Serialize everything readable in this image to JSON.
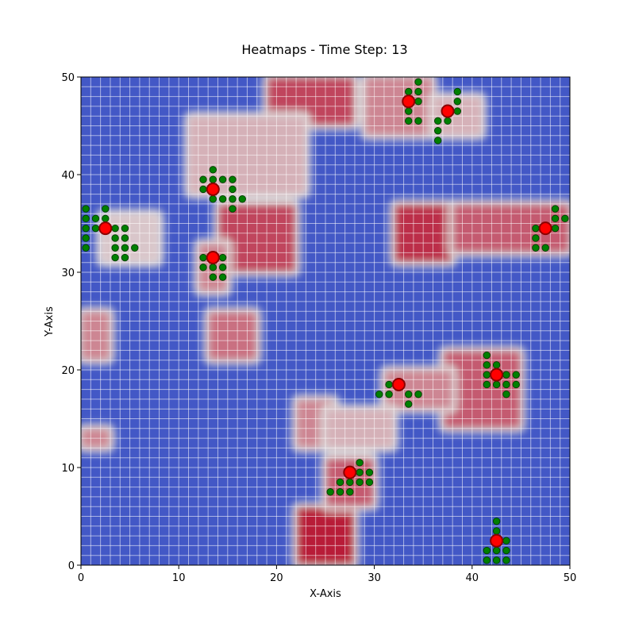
{
  "chart_data": {
    "type": "heatmap",
    "title": "Heatmaps - Time Step: 13",
    "xlabel": "X-Axis",
    "ylabel": "Y-Axis",
    "xlim": [
      0,
      50
    ],
    "ylim": [
      0,
      50
    ],
    "x_ticks": [
      "0",
      "10",
      "20",
      "30",
      "40",
      "50"
    ],
    "y_ticks": [
      "0",
      "10",
      "20",
      "30",
      "40",
      "50"
    ],
    "grid": true,
    "colormap": {
      "low": "#3b4cc0",
      "mid": "#dddcdc",
      "high": "#b40426"
    },
    "grid_color": "#ffffff",
    "hot_regions": [
      {
        "x": [
          19,
          28
        ],
        "y": [
          45,
          50
        ],
        "value": 0.85
      },
      {
        "x": [
          11,
          23
        ],
        "y": [
          38,
          46
        ],
        "value": 0.6
      },
      {
        "x": [
          14,
          22
        ],
        "y": [
          30,
          37
        ],
        "value": 0.85
      },
      {
        "x": [
          22,
          28
        ],
        "y": [
          0,
          6
        ],
        "value": 0.95
      },
      {
        "x": [
          22,
          26
        ],
        "y": [
          12,
          17
        ],
        "value": 0.7
      },
      {
        "x": [
          32,
          38
        ],
        "y": [
          31,
          37
        ],
        "value": 0.9
      },
      {
        "x": [
          38,
          50
        ],
        "y": [
          32,
          37
        ],
        "value": 0.8
      },
      {
        "x": [
          37,
          45
        ],
        "y": [
          14,
          22
        ],
        "value": 0.8
      },
      {
        "x": [
          25,
          30
        ],
        "y": [
          6,
          11
        ],
        "value": 0.8
      },
      {
        "x": [
          0,
          3
        ],
        "y": [
          21,
          26
        ],
        "value": 0.7
      },
      {
        "x": [
          0,
          3
        ],
        "y": [
          12,
          14
        ],
        "value": 0.7
      },
      {
        "x": [
          13,
          18
        ],
        "y": [
          21,
          26
        ],
        "value": 0.75
      },
      {
        "x": [
          31,
          38
        ],
        "y": [
          16,
          20
        ],
        "value": 0.7
      },
      {
        "x": [
          29,
          36
        ],
        "y": [
          44,
          50
        ],
        "value": 0.7
      },
      {
        "x": [
          36,
          41
        ],
        "y": [
          44,
          48
        ],
        "value": 0.6
      },
      {
        "x": [
          2,
          8
        ],
        "y": [
          31,
          36
        ],
        "value": 0.55
      },
      {
        "x": [
          12,
          15
        ],
        "y": [
          28,
          33
        ],
        "value": 0.7
      },
      {
        "x": [
          25,
          32
        ],
        "y": [
          12,
          16
        ],
        "value": 0.6
      }
    ],
    "agents": [
      {
        "x": 2.5,
        "y": 34.5
      },
      {
        "x": 13.5,
        "y": 38.5
      },
      {
        "x": 13.5,
        "y": 31.5
      },
      {
        "x": 33.5,
        "y": 47.5
      },
      {
        "x": 37.5,
        "y": 46.5
      },
      {
        "x": 47.5,
        "y": 34.5
      },
      {
        "x": 42.5,
        "y": 19.5
      },
      {
        "x": 32.5,
        "y": 18.5
      },
      {
        "x": 27.5,
        "y": 9.5
      },
      {
        "x": 42.5,
        "y": 2.5
      }
    ],
    "trail_points": [
      [
        0.5,
        36.5
      ],
      [
        2.5,
        36.5
      ],
      [
        0.5,
        35.5
      ],
      [
        1.5,
        35.5
      ],
      [
        2.5,
        35.5
      ],
      [
        0.5,
        34.5
      ],
      [
        1.5,
        34.5
      ],
      [
        3.5,
        34.5
      ],
      [
        4.5,
        34.5
      ],
      [
        0.5,
        33.5
      ],
      [
        3.5,
        33.5
      ],
      [
        4.5,
        33.5
      ],
      [
        0.5,
        32.5
      ],
      [
        3.5,
        32.5
      ],
      [
        4.5,
        32.5
      ],
      [
        5.5,
        32.5
      ],
      [
        3.5,
        31.5
      ],
      [
        4.5,
        31.5
      ],
      [
        13.5,
        40.5
      ],
      [
        12.5,
        39.5
      ],
      [
        13.5,
        39.5
      ],
      [
        14.5,
        39.5
      ],
      [
        15.5,
        39.5
      ],
      [
        12.5,
        38.5
      ],
      [
        15.5,
        38.5
      ],
      [
        13.5,
        37.5
      ],
      [
        14.5,
        37.5
      ],
      [
        15.5,
        37.5
      ],
      [
        16.5,
        37.5
      ],
      [
        15.5,
        36.5
      ],
      [
        12.5,
        31.5
      ],
      [
        14.5,
        31.5
      ],
      [
        12.5,
        30.5
      ],
      [
        13.5,
        30.5
      ],
      [
        14.5,
        30.5
      ],
      [
        13.5,
        29.5
      ],
      [
        14.5,
        29.5
      ],
      [
        34.5,
        49.5
      ],
      [
        33.5,
        48.5
      ],
      [
        34.5,
        48.5
      ],
      [
        34.5,
        47.5
      ],
      [
        33.5,
        46.5
      ],
      [
        33.5,
        45.5
      ],
      [
        34.5,
        45.5
      ],
      [
        38.5,
        48.5
      ],
      [
        38.5,
        47.5
      ],
      [
        38.5,
        46.5
      ],
      [
        36.5,
        45.5
      ],
      [
        37.5,
        45.5
      ],
      [
        36.5,
        44.5
      ],
      [
        36.5,
        43.5
      ],
      [
        48.5,
        36.5
      ],
      [
        48.5,
        35.5
      ],
      [
        49.5,
        35.5
      ],
      [
        46.5,
        34.5
      ],
      [
        48.5,
        34.5
      ],
      [
        46.5,
        33.5
      ],
      [
        46.5,
        32.5
      ],
      [
        47.5,
        32.5
      ],
      [
        41.5,
        21.5
      ],
      [
        41.5,
        20.5
      ],
      [
        42.5,
        20.5
      ],
      [
        41.5,
        19.5
      ],
      [
        43.5,
        19.5
      ],
      [
        44.5,
        19.5
      ],
      [
        41.5,
        18.5
      ],
      [
        42.5,
        18.5
      ],
      [
        43.5,
        18.5
      ],
      [
        44.5,
        18.5
      ],
      [
        43.5,
        17.5
      ],
      [
        31.5,
        18.5
      ],
      [
        30.5,
        17.5
      ],
      [
        31.5,
        17.5
      ],
      [
        33.5,
        17.5
      ],
      [
        34.5,
        17.5
      ],
      [
        33.5,
        16.5
      ],
      [
        28.5,
        10.5
      ],
      [
        28.5,
        9.5
      ],
      [
        29.5,
        9.5
      ],
      [
        26.5,
        8.5
      ],
      [
        27.5,
        8.5
      ],
      [
        28.5,
        8.5
      ],
      [
        29.5,
        8.5
      ],
      [
        25.5,
        7.5
      ],
      [
        26.5,
        7.5
      ],
      [
        27.5,
        7.5
      ],
      [
        42.5,
        4.5
      ],
      [
        42.5,
        3.5
      ],
      [
        43.5,
        2.5
      ],
      [
        41.5,
        1.5
      ],
      [
        42.5,
        1.5
      ],
      [
        43.5,
        1.5
      ],
      [
        41.5,
        0.5
      ],
      [
        42.5,
        0.5
      ],
      [
        43.5,
        0.5
      ]
    ],
    "agent_color": "#ff0000",
    "trail_color": "#008000"
  }
}
